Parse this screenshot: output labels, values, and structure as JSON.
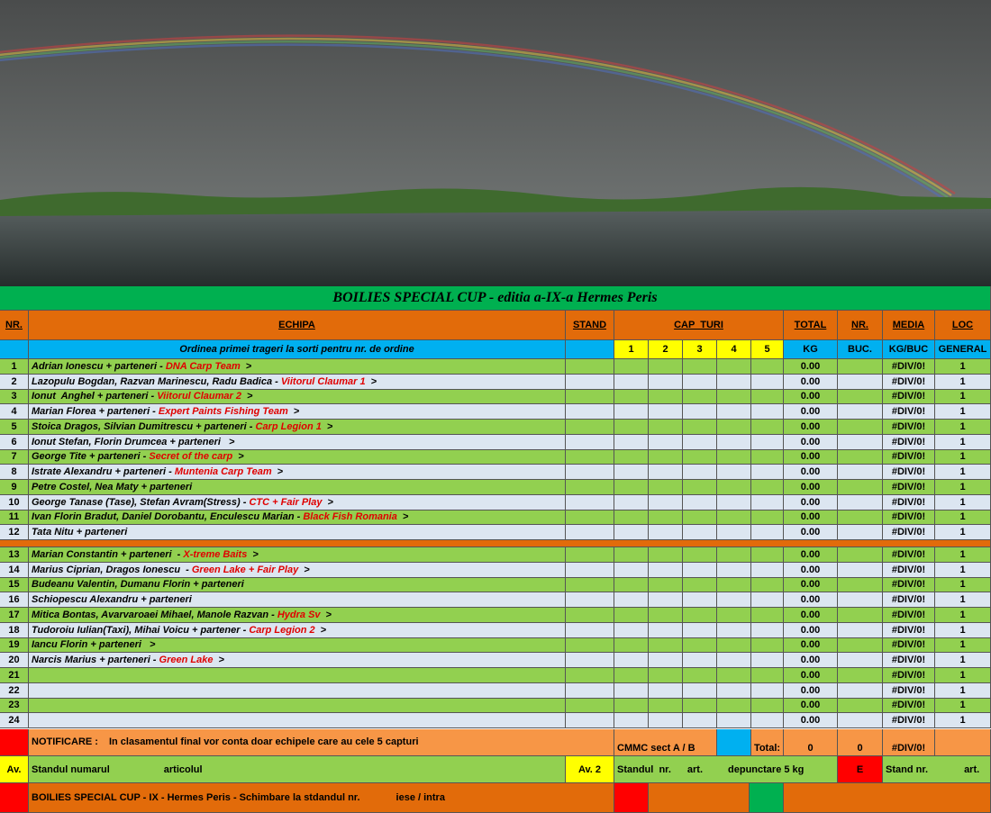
{
  "title": "BOILIES SPECIAL CUP - editia a-IX-a Hermes Peris",
  "header": {
    "nr": "NR.",
    "team": "ECHIPA",
    "stand": "STAND",
    "turns": "CAP  TURI",
    "total": "TOTAL",
    "count": "NR.",
    "avg": "MEDIA",
    "rank": "LOC"
  },
  "subheader": {
    "order": "Ordinea primei trageri la sorti pentru nr. de ordine",
    "turns": [
      1,
      2,
      3,
      4,
      5
    ],
    "total": "KG",
    "count": "BUC.",
    "avg": "KG/BUC",
    "rank": "GENERAL"
  },
  "rows": [
    {
      "nr": 1,
      "team": "Adrian Ionescu + parteneri - ",
      "sponsor": "DNA Carp Team",
      "arrow": ">",
      "total": "0.00",
      "avg": "#DIV/0!",
      "rank": "1"
    },
    {
      "nr": 2,
      "team": "Lazopulu Bogdan, Razvan Marinescu, Radu Badica - ",
      "sponsor": "Viitorul Claumar 1",
      "arrow": ">",
      "total": "0.00",
      "avg": "#DIV/0!",
      "rank": "1"
    },
    {
      "nr": 3,
      "team": "Ionut  Anghel + parteneri - ",
      "sponsor": "Viitorul Claumar 2",
      "arrow": ">",
      "total": "0.00",
      "avg": "#DIV/0!",
      "rank": "1"
    },
    {
      "nr": 4,
      "team": "Marian Florea + parteneri - ",
      "sponsor": "Expert Paints Fishing Team",
      "arrow": ">",
      "total": "0.00",
      "avg": "#DIV/0!",
      "rank": "1"
    },
    {
      "nr": 5,
      "team": "Stoica Dragos, Silvian Dumitrescu + parteneri - ",
      "sponsor": "Carp Legion 1",
      "arrow": ">",
      "total": "0.00",
      "avg": "#DIV/0!",
      "rank": "1"
    },
    {
      "nr": 6,
      "team": "Ionut Stefan, Florin Drumcea + parteneri ",
      "arrow": ">",
      "total": "0.00",
      "avg": "#DIV/0!",
      "rank": "1"
    },
    {
      "nr": 7,
      "team": "George Tite + parteneri - ",
      "sponsor": "Secret of the carp",
      "arrow": ">",
      "total": "0.00",
      "avg": "#DIV/0!",
      "rank": "1"
    },
    {
      "nr": 8,
      "team": "Istrate Alexandru + parteneri - ",
      "sponsor": "Muntenia Carp Team",
      "arrow": ">",
      "total": "0.00",
      "avg": "#DIV/0!",
      "rank": "1"
    },
    {
      "nr": 9,
      "team": "Petre Costel, Nea Maty + parteneri",
      "total": "0.00",
      "avg": "#DIV/0!",
      "rank": "1"
    },
    {
      "nr": 10,
      "team": "George Tanase (Tase), Stefan Avram(Stress) - ",
      "sponsor": "CTC + Fair Play",
      "arrow": ">",
      "total": "0.00",
      "avg": "#DIV/0!",
      "rank": "1"
    },
    {
      "nr": 11,
      "team": "Ivan Florin Bradut, Daniel Dorobantu, Enculescu Marian - ",
      "sponsor": "Black Fish Romania",
      "arrow": ">",
      "total": "0.00",
      "avg": "#DIV/0!",
      "rank": "1"
    },
    {
      "nr": 12,
      "team": "Tata Nitu + parteneri",
      "total": "0.00",
      "avg": "#DIV/0!",
      "rank": "1"
    },
    {
      "nr": 13,
      "team": "Marian Constantin + parteneri  - ",
      "sponsor": "X-treme Baits",
      "arrow": ">",
      "total": "0.00",
      "avg": "#DIV/0!",
      "rank": "1"
    },
    {
      "nr": 14,
      "team": "Marius Ciprian, Dragos Ionescu  - ",
      "sponsor": "Green Lake + Fair Play",
      "arrow": ">",
      "total": "0.00",
      "avg": "#DIV/0!",
      "rank": "1"
    },
    {
      "nr": 15,
      "team": "Budeanu Valentin, Dumanu Florin + parteneri",
      "total": "0.00",
      "avg": "#DIV/0!",
      "rank": "1"
    },
    {
      "nr": 16,
      "team": "Schiopescu Alexandru + parteneri",
      "total": "0.00",
      "avg": "#DIV/0!",
      "rank": "1"
    },
    {
      "nr": 17,
      "team": "Mitica Bontas, Avarvaroaei Mihael, Manole Razvan - ",
      "sponsor": "Hydra Sv",
      "arrow": ">",
      "total": "0.00",
      "avg": "#DIV/0!",
      "rank": "1"
    },
    {
      "nr": 18,
      "team": "Tudoroiu Iulian(Taxi), Mihai Voicu + partener - ",
      "sponsor": "Carp Legion 2",
      "arrow": ">",
      "total": "0.00",
      "avg": "#DIV/0!",
      "rank": "1"
    },
    {
      "nr": 19,
      "team": "Iancu Florin + parteneri ",
      "arrow": ">",
      "total": "0.00",
      "avg": "#DIV/0!",
      "rank": "1"
    },
    {
      "nr": 20,
      "team": "Narcis Marius + parteneri - ",
      "sponsor": "Green Lake",
      "arrow": ">",
      "total": "0.00",
      "avg": "#DIV/0!",
      "rank": "1"
    },
    {
      "nr": 21,
      "total": "0.00",
      "avg": "#DIV/0!",
      "rank": "1"
    },
    {
      "nr": 22,
      "total": "0.00",
      "avg": "#DIV/0!",
      "rank": "1"
    },
    {
      "nr": 23,
      "total": "0.00",
      "avg": "#DIV/0!",
      "rank": "1"
    },
    {
      "nr": 24,
      "total": "0.00",
      "avg": "#DIV/0!",
      "rank": "1"
    }
  ],
  "footer": {
    "note_label": "NOTIFICARE :",
    "note": "In clasamentul final vor conta doar echipele care au cele 5 capturi",
    "sector": "CMMC sect  A / B",
    "total_label": "Total:",
    "total": "0",
    "count": "0",
    "avg": "#DIV/0!",
    "av": "Av.",
    "stand_no": "Standul numarul",
    "article": "articolul",
    "av2": "Av. 2",
    "stand_no2": "Standul  nr.",
    "art2": "art.",
    "penalty": "depunctare 5 kg",
    "e": "E",
    "stand_no3": "Stand nr.",
    "art3": "art.",
    "change": "BOILIES SPECIAL CUP - IX - Hermes Peris - Schimbare la stdandul  nr.",
    "in_out": "iese / intra"
  }
}
